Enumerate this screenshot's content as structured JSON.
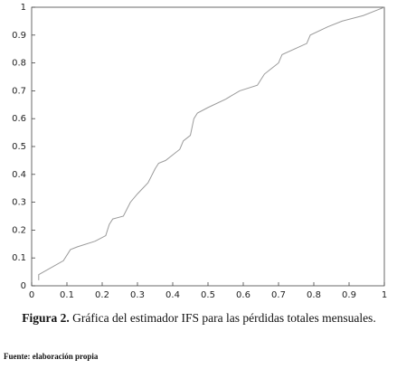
{
  "chart_data": {
    "type": "line",
    "x": [
      0.02,
      0.02,
      0.09,
      0.11,
      0.13,
      0.18,
      0.21,
      0.22,
      0.23,
      0.26,
      0.28,
      0.3,
      0.33,
      0.35,
      0.36,
      0.38,
      0.42,
      0.43,
      0.45,
      0.46,
      0.47,
      0.5,
      0.55,
      0.59,
      0.64,
      0.66,
      0.68,
      0.7,
      0.71,
      0.78,
      0.79,
      0.84,
      0.88,
      0.94,
      0.98,
      1.0
    ],
    "series": [
      {
        "color": "#9a9a9a",
        "values": [
          0.02,
          0.04,
          0.09,
          0.13,
          0.14,
          0.16,
          0.18,
          0.22,
          0.24,
          0.25,
          0.3,
          0.33,
          0.37,
          0.42,
          0.44,
          0.45,
          0.49,
          0.52,
          0.54,
          0.6,
          0.62,
          0.64,
          0.67,
          0.7,
          0.72,
          0.76,
          0.78,
          0.8,
          0.83,
          0.87,
          0.9,
          0.93,
          0.95,
          0.97,
          0.99,
          1.0
        ]
      }
    ],
    "xlim": [
      0,
      1
    ],
    "ylim": [
      0,
      1
    ],
    "xticks": [
      0,
      0.1,
      0.2,
      0.3,
      0.4,
      0.5,
      0.6,
      0.7,
      0.8,
      0.9,
      1
    ],
    "yticks": [
      0,
      0.1,
      0.2,
      0.3,
      0.4,
      0.5,
      0.6,
      0.7,
      0.8,
      0.9,
      1
    ],
    "caption": {
      "label": "Figura 2.",
      "text": "Gráfica del estimador IFS para las pérdidas totales mensuales."
    },
    "source": "Fuente: elaboración propia"
  }
}
